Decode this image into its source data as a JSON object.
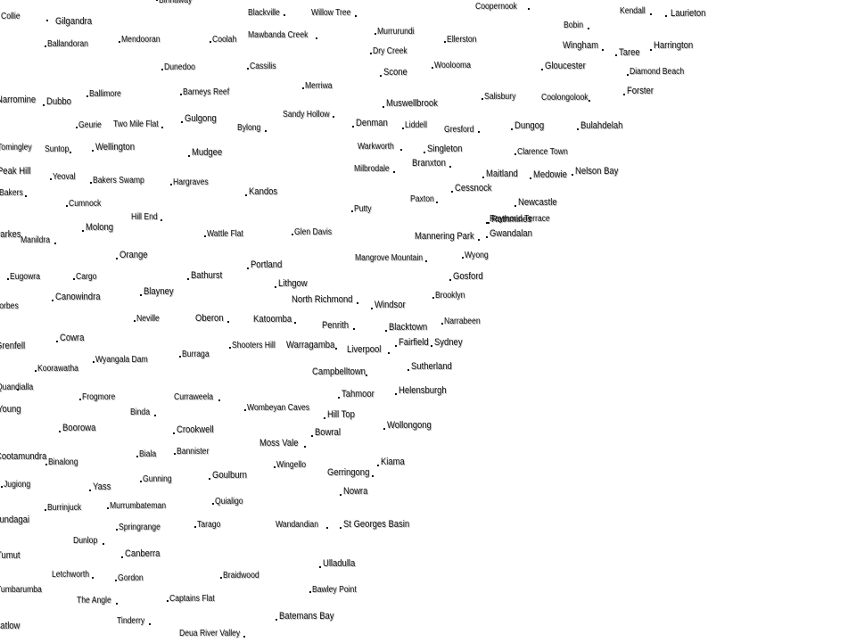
{
  "map": {
    "places": [
      {
        "name": "Collie",
        "large": false
      },
      {
        "name": "Gilgandra",
        "large": true
      },
      {
        "name": "Binnaway",
        "large": false
      },
      {
        "name": "Blackville",
        "large": false
      },
      {
        "name": "Willow Tree",
        "large": false
      },
      {
        "name": "Coopernook",
        "large": false
      },
      {
        "name": "Kendall",
        "large": false
      },
      {
        "name": "Laurieton",
        "large": true
      },
      {
        "name": "Ballandoran",
        "large": false
      },
      {
        "name": "Mendooran",
        "large": false
      },
      {
        "name": "Coolah",
        "large": false
      },
      {
        "name": "Mawbanda Creek",
        "large": false
      },
      {
        "name": "Murrurundi",
        "large": false
      },
      {
        "name": "Ellerston",
        "large": false
      },
      {
        "name": "Bobin",
        "large": false
      },
      {
        "name": "Wingham",
        "large": true
      },
      {
        "name": "Taree",
        "large": true
      },
      {
        "name": "Harrington",
        "large": true
      },
      {
        "name": "Dry Creek",
        "large": false
      },
      {
        "name": "Dunedoo",
        "large": false
      },
      {
        "name": "Cassilis",
        "large": false
      },
      {
        "name": "Scone",
        "large": true
      },
      {
        "name": "Woolooma",
        "large": false
      },
      {
        "name": "Gloucester",
        "large": true
      },
      {
        "name": "Diamond Beach",
        "large": false
      },
      {
        "name": "Merriwa",
        "large": false
      },
      {
        "name": "Forster",
        "large": true
      },
      {
        "name": "Narromine",
        "large": true
      },
      {
        "name": "Dubbo",
        "large": true
      },
      {
        "name": "Ballimore",
        "large": false
      },
      {
        "name": "Barneys Reef",
        "large": false
      },
      {
        "name": "Muswellbrook",
        "large": true
      },
      {
        "name": "Salisbury",
        "large": false
      },
      {
        "name": "Coolongolook",
        "large": false
      },
      {
        "name": "Sandy Hollow",
        "large": false
      },
      {
        "name": "Geurie",
        "large": false
      },
      {
        "name": "Two Mile Flat",
        "large": false
      },
      {
        "name": "Gulgong",
        "large": true
      },
      {
        "name": "Bylong",
        "large": false
      },
      {
        "name": "Denman",
        "large": true
      },
      {
        "name": "Liddell",
        "large": false
      },
      {
        "name": "Gresford",
        "large": false
      },
      {
        "name": "Dungog",
        "large": true
      },
      {
        "name": "Bulahdelah",
        "large": true
      },
      {
        "name": "Tomingley",
        "large": false
      },
      {
        "name": "Suntop",
        "large": false
      },
      {
        "name": "Wellington",
        "large": true
      },
      {
        "name": "Mudgee",
        "large": true
      },
      {
        "name": "Warkworth",
        "large": false
      },
      {
        "name": "Singleton",
        "large": true
      },
      {
        "name": "Clarence Town",
        "large": false
      },
      {
        "name": "Branxton",
        "large": true
      },
      {
        "name": "Peak Hill",
        "large": true
      },
      {
        "name": "Yeoval",
        "large": false
      },
      {
        "name": "Bakers Swamp",
        "large": false
      },
      {
        "name": "Hargraves",
        "large": false
      },
      {
        "name": "Milbrodale",
        "large": false
      },
      {
        "name": "Maitland",
        "large": true
      },
      {
        "name": "Medowie",
        "large": true
      },
      {
        "name": "Nelson Bay",
        "large": true
      },
      {
        "name": "Bakers",
        "large": false
      },
      {
        "name": "Kandos",
        "large": true
      },
      {
        "name": "Cessnock",
        "large": true
      },
      {
        "name": "Cumnock",
        "large": false
      },
      {
        "name": "Paxton",
        "large": false
      },
      {
        "name": "Newcastle",
        "large": true
      },
      {
        "name": "Putty",
        "large": false
      },
      {
        "name": "Hill End",
        "large": false
      },
      {
        "name": "Raymond Terrace",
        "large": false
      },
      {
        "name": "Rathmines",
        "large": true
      },
      {
        "name": "Parkes",
        "large": true
      },
      {
        "name": "Molong",
        "large": true
      },
      {
        "name": "Wattle Flat",
        "large": false
      },
      {
        "name": "Glen Davis",
        "large": false
      },
      {
        "name": "Mannering Park",
        "large": true
      },
      {
        "name": "Gwandalan",
        "large": true
      },
      {
        "name": "Manildra",
        "large": false
      },
      {
        "name": "Orange",
        "large": true
      },
      {
        "name": "Mangrove Mountain",
        "large": false
      },
      {
        "name": "Wyong",
        "large": false
      },
      {
        "name": "Portland",
        "large": true
      },
      {
        "name": "Eugowra",
        "large": false
      },
      {
        "name": "Cargo",
        "large": false
      },
      {
        "name": "Bathurst",
        "large": true
      },
      {
        "name": "Gosford",
        "large": true
      },
      {
        "name": "Lithgow",
        "large": true
      },
      {
        "name": "Canowindra",
        "large": true
      },
      {
        "name": "Blayney",
        "large": true
      },
      {
        "name": "Brooklyn",
        "large": false
      },
      {
        "name": "North Richmond",
        "large": true
      },
      {
        "name": "Windsor",
        "large": true
      },
      {
        "name": "Forbes",
        "large": false
      },
      {
        "name": "Neville",
        "large": false
      },
      {
        "name": "Oberon",
        "large": true
      },
      {
        "name": "Katoomba",
        "large": true
      },
      {
        "name": "Penrith",
        "large": true
      },
      {
        "name": "Blacktown",
        "large": true
      },
      {
        "name": "Narrabeen",
        "large": false
      },
      {
        "name": "Cowra",
        "large": true
      },
      {
        "name": "Fairfield",
        "large": true
      },
      {
        "name": "Sydney",
        "large": true
      },
      {
        "name": "Grenfell",
        "large": true
      },
      {
        "name": "Shooters Hill",
        "large": false
      },
      {
        "name": "Warragamba",
        "large": true
      },
      {
        "name": "Liverpool",
        "large": true
      },
      {
        "name": "Burraga",
        "large": false
      },
      {
        "name": "Wyangala Dam",
        "large": false
      },
      {
        "name": "Koorawatha",
        "large": false
      },
      {
        "name": "Sutherland",
        "large": true
      },
      {
        "name": "Campbelltown",
        "large": true
      },
      {
        "name": "Quandialla",
        "large": false
      },
      {
        "name": "Helensburgh",
        "large": true
      },
      {
        "name": "Tahmoor",
        "large": true
      },
      {
        "name": "Frogmore",
        "large": false
      },
      {
        "name": "Curraweela",
        "large": false
      },
      {
        "name": "Young",
        "large": true
      },
      {
        "name": "Binda",
        "large": false
      },
      {
        "name": "Wombeyan Caves",
        "large": false
      },
      {
        "name": "Hill Top",
        "large": true
      },
      {
        "name": "Wollongong",
        "large": true
      },
      {
        "name": "Boorowa",
        "large": true
      },
      {
        "name": "Crookwell",
        "large": true
      },
      {
        "name": "Bowral",
        "large": true
      },
      {
        "name": "Moss Vale",
        "large": true
      },
      {
        "name": "Bannister",
        "large": false
      },
      {
        "name": "Cootamundra",
        "large": true
      },
      {
        "name": "Biala",
        "large": false
      },
      {
        "name": "Kiama",
        "large": true
      },
      {
        "name": "Binalong",
        "large": false
      },
      {
        "name": "Wingello",
        "large": false
      },
      {
        "name": "Gerringong",
        "large": true
      },
      {
        "name": "Gunning",
        "large": false
      },
      {
        "name": "Goulburn",
        "large": true
      },
      {
        "name": "Jugiong",
        "large": false
      },
      {
        "name": "Yass",
        "large": true
      },
      {
        "name": "Nowra",
        "large": true
      },
      {
        "name": "Gundagai",
        "large": true
      },
      {
        "name": "Burrinjuck",
        "large": false
      },
      {
        "name": "Murrumbateman",
        "large": false
      },
      {
        "name": "Quialigo",
        "large": false
      },
      {
        "name": "Springrange",
        "large": false
      },
      {
        "name": "Tarago",
        "large": false
      },
      {
        "name": "Wandandian",
        "large": false
      },
      {
        "name": "St Georges Basin",
        "large": true
      },
      {
        "name": "Dunlop",
        "large": false
      },
      {
        "name": "Tumut",
        "large": true
      },
      {
        "name": "Canberra",
        "large": true
      },
      {
        "name": "Ulladulla",
        "large": true
      },
      {
        "name": "Letchworth",
        "large": false
      },
      {
        "name": "Gordon",
        "large": false
      },
      {
        "name": "Braidwood",
        "large": false
      },
      {
        "name": "Tumbarumba",
        "large": false
      },
      {
        "name": "Bawley Point",
        "large": false
      },
      {
        "name": "The Angle",
        "large": false
      },
      {
        "name": "Captains Flat",
        "large": false
      },
      {
        "name": "Batemans Bay",
        "large": true
      },
      {
        "name": "Tinderry",
        "large": false
      },
      {
        "name": "Batlow",
        "large": true
      },
      {
        "name": "Deua River Valley",
        "large": false
      }
    ]
  }
}
